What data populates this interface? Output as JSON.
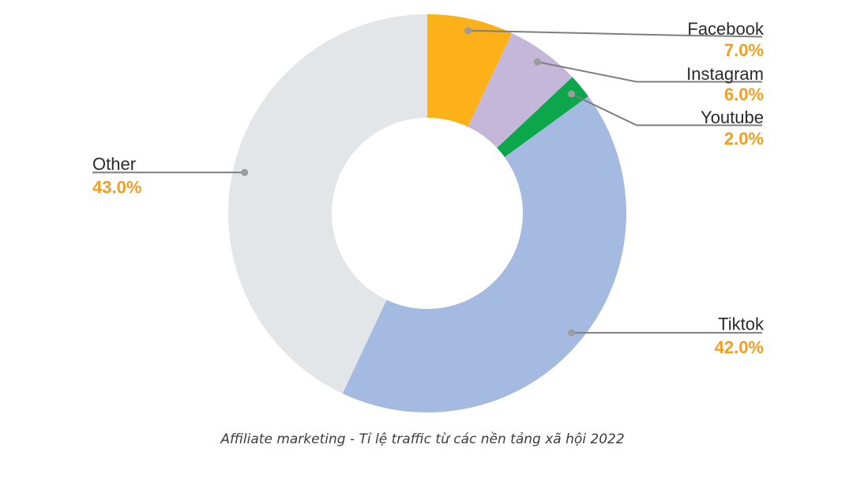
{
  "chart_data": {
    "type": "pie",
    "subtype": "donut",
    "title": "Affiliate marketing - Tỉ lệ traffic từ các nền tảng xã hội 2022",
    "start_angle_deg": 0,
    "direction": "clockwise",
    "inner_radius_ratio": 0.48,
    "total": 100,
    "legend_position": "none",
    "label_style": "external-leader-lines-with-dots",
    "slices": [
      {
        "label": "Facebook",
        "value": 7.0,
        "value_label": "7.0%",
        "color": "#FBB117"
      },
      {
        "label": "Instagram",
        "value": 6.0,
        "value_label": "6.0%",
        "color": "#C5B7D9"
      },
      {
        "label": "Youtube",
        "value": 2.0,
        "value_label": "2.0%",
        "color": "#0CA74B"
      },
      {
        "label": "Tiktok",
        "value": 42.0,
        "value_label": "42.0%",
        "color": "#A5BAE0"
      },
      {
        "label": "Other",
        "value": 43.0,
        "value_label": "43.0%",
        "color": "#E2E6E9"
      }
    ],
    "colors": {
      "label_text": "#2B2B2B",
      "value_text": "#F59D1E",
      "leader_line": "#7E7E7E",
      "leader_dot": "#9C9C9C",
      "background": "#FFFFFF",
      "caption_text": "#3C3C3C"
    }
  }
}
